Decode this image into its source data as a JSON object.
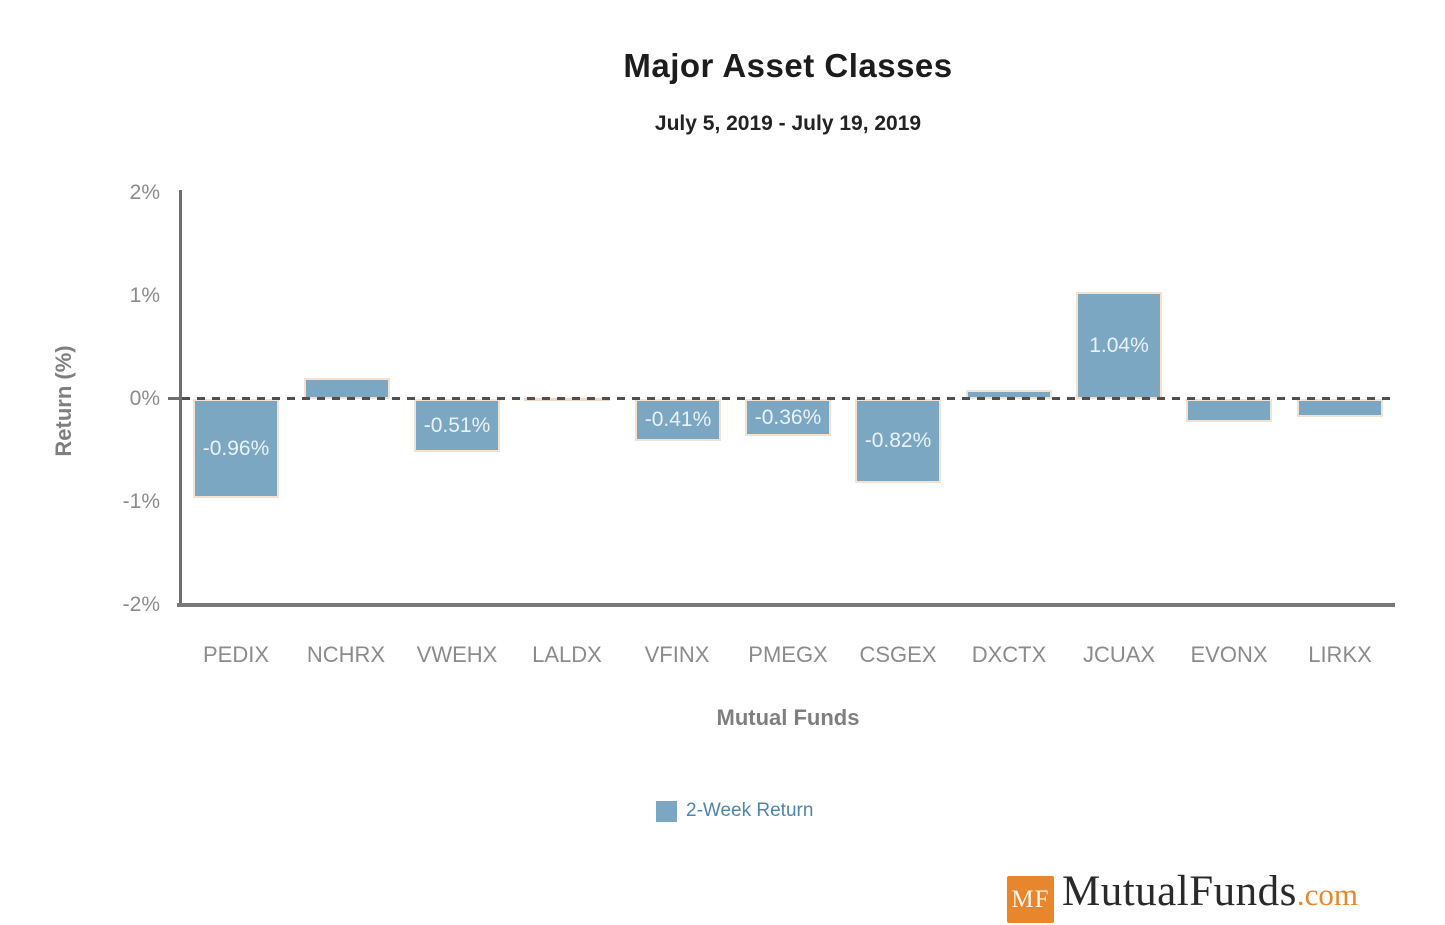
{
  "chart_data": {
    "type": "bar",
    "title": "Major Asset Classes",
    "subtitle": "July 5, 2019 - July 19, 2019",
    "xlabel": "Mutual Funds",
    "ylabel": "Return (%)",
    "categories": [
      "PEDIX",
      "NCHRX",
      "VWEHX",
      "LALDX",
      "VFINX",
      "PMEGX",
      "CSGEX",
      "DXCTX",
      "JCUAX",
      "EVONX",
      "LIRKX"
    ],
    "series": [
      {
        "name": "2-Week Return",
        "values": [
          -0.96,
          0.2,
          -0.51,
          0,
          -0.41,
          -0.36,
          -0.82,
          0.09,
          1.04,
          -0.22,
          -0.17
        ],
        "data_labels": [
          "-0.96%",
          null,
          "-0.51%",
          null,
          "-0.41%",
          "-0.36%",
          "-0.82%",
          null,
          "1.04%",
          null,
          null
        ]
      }
    ],
    "ylim": [
      -2,
      2
    ],
    "yticks": [
      "2%",
      "1%",
      "0%",
      "-1%",
      "-2%"
    ],
    "grid": "zero-dashed-line-only",
    "legend_position": "bottom-center"
  },
  "colors": {
    "bar_fill": "#7ba7c3",
    "bar_stroke": "#f4e1d1",
    "data_label_text": "#eaf2f7",
    "zero_line": "#4f4f4f",
    "axis_text": "#8b8b8b",
    "legend_text": "#4d85ac",
    "brand_orange": "#e8862d"
  },
  "branding": {
    "badge": "MF",
    "name": "MutualFunds",
    "tld": ".com"
  }
}
